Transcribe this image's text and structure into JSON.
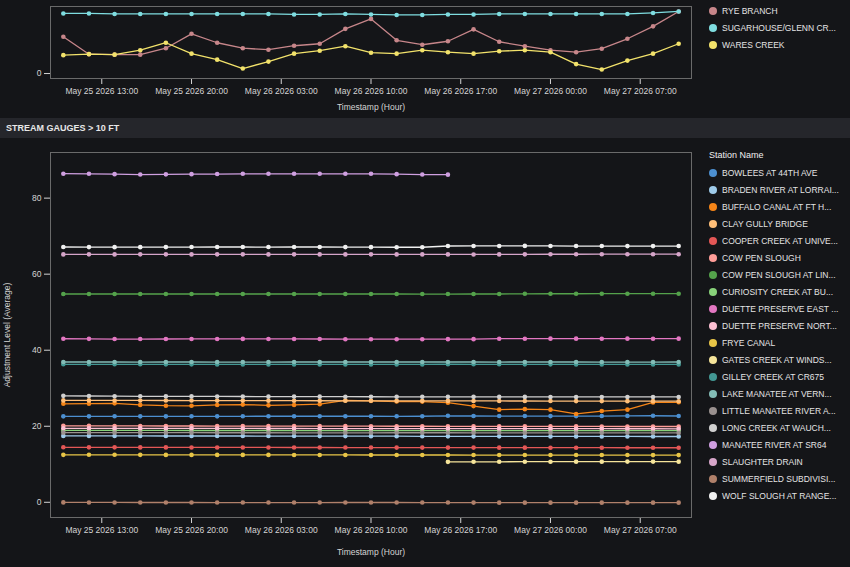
{
  "chart_data": [
    {
      "type": "line",
      "xlabel": "Timestamp (Hour)",
      "x": [
        "2026-05-25T10:00",
        "2026-05-25T12:00",
        "2026-05-25T14:00",
        "2026-05-25T16:00",
        "2026-05-25T18:00",
        "2026-05-25T20:00",
        "2026-05-25T22:00",
        "2026-05-26T00:00",
        "2026-05-26T02:00",
        "2026-05-26T04:00",
        "2026-05-26T06:00",
        "2026-05-26T08:00",
        "2026-05-26T10:00",
        "2026-05-26T12:00",
        "2026-05-26T14:00",
        "2026-05-26T16:00",
        "2026-05-26T18:00",
        "2026-05-26T20:00",
        "2026-05-26T22:00",
        "2026-05-27T00:00",
        "2026-05-27T02:00",
        "2026-05-27T04:00",
        "2026-05-27T06:00",
        "2026-05-27T08:00",
        "2026-05-27T10:00"
      ],
      "xlim": [
        "2026-05-25T09:00",
        "2026-05-27T11:00"
      ],
      "xticks": [
        {
          "value": "2026-05-25T13:00",
          "label": "May 25 2026 13:00"
        },
        {
          "value": "2026-05-25T20:00",
          "label": "May 25 2026 20:00"
        },
        {
          "value": "2026-05-26T03:00",
          "label": "May 26 2026 03:00"
        },
        {
          "value": "2026-05-26T10:00",
          "label": "May 26 2026 10:00"
        },
        {
          "value": "2026-05-26T17:00",
          "label": "May 26 2026 17:00"
        },
        {
          "value": "2026-05-27T00:00",
          "label": "May 27 2026 00:00"
        },
        {
          "value": "2026-05-27T07:00",
          "label": "May 27 2026 07:00"
        }
      ],
      "ylim": [
        -0.1,
        1.35
      ],
      "yticks": [
        0
      ],
      "grid": false,
      "legend": "right",
      "marker": "circle",
      "series": [
        {
          "name": "RYE BRANCH",
          "color": "#c7868a",
          "values": [
            0.74,
            0.39,
            0.38,
            0.38,
            0.51,
            0.8,
            0.62,
            0.51,
            0.48,
            0.56,
            0.6,
            0.9,
            1.1,
            0.67,
            0.58,
            0.65,
            0.89,
            0.64,
            0.55,
            0.47,
            0.43,
            0.5,
            0.7,
            0.95,
            1.25
          ]
        },
        {
          "name": "SUGARHOUSE/GLENN CR...",
          "color": "#7fdde0",
          "values": [
            1.21,
            1.21,
            1.2,
            1.2,
            1.2,
            1.2,
            1.2,
            1.2,
            1.2,
            1.19,
            1.19,
            1.2,
            1.19,
            1.18,
            1.18,
            1.19,
            1.19,
            1.2,
            1.2,
            1.2,
            1.2,
            1.2,
            1.2,
            1.22,
            1.25
          ]
        },
        {
          "name": "WARES CREEK",
          "color": "#f2e26b",
          "values": [
            0.37,
            0.39,
            0.38,
            0.47,
            0.62,
            0.4,
            0.28,
            0.1,
            0.24,
            0.4,
            0.46,
            0.55,
            0.42,
            0.4,
            0.47,
            0.43,
            0.4,
            0.45,
            0.47,
            0.43,
            0.19,
            0.08,
            0.26,
            0.4,
            0.6
          ]
        }
      ]
    },
    {
      "type": "line",
      "title": "STREAM GAUGES > 10 FT",
      "legend_title": "Station Name",
      "xlabel": "Timestamp (Hour)",
      "ylabel": "Adjustment Level (Average)",
      "x": [
        "2026-05-25T10:00",
        "2026-05-25T12:00",
        "2026-05-25T14:00",
        "2026-05-25T16:00",
        "2026-05-25T18:00",
        "2026-05-25T20:00",
        "2026-05-25T22:00",
        "2026-05-26T00:00",
        "2026-05-26T02:00",
        "2026-05-26T04:00",
        "2026-05-26T06:00",
        "2026-05-26T08:00",
        "2026-05-26T10:00",
        "2026-05-26T12:00",
        "2026-05-26T14:00",
        "2026-05-26T16:00",
        "2026-05-26T18:00",
        "2026-05-26T20:00",
        "2026-05-26T22:00",
        "2026-05-27T00:00",
        "2026-05-27T02:00",
        "2026-05-27T04:00",
        "2026-05-27T06:00",
        "2026-05-27T08:00",
        "2026-05-27T10:00"
      ],
      "xlim": [
        "2026-05-25T09:00",
        "2026-05-27T11:00"
      ],
      "xticks": [
        {
          "value": "2026-05-25T13:00",
          "label": "May 25 2026 13:00"
        },
        {
          "value": "2026-05-25T20:00",
          "label": "May 25 2026 20:00"
        },
        {
          "value": "2026-05-26T03:00",
          "label": "May 26 2026 03:00"
        },
        {
          "value": "2026-05-26T10:00",
          "label": "May 26 2026 10:00"
        },
        {
          "value": "2026-05-26T17:00",
          "label": "May 26 2026 17:00"
        },
        {
          "value": "2026-05-27T00:00",
          "label": "May 27 2026 00:00"
        },
        {
          "value": "2026-05-27T07:00",
          "label": "May 27 2026 07:00"
        }
      ],
      "ylim": [
        -4,
        92
      ],
      "yticks": [
        0,
        20,
        40,
        60,
        80
      ],
      "grid": false,
      "legend": "right",
      "marker": "circle",
      "series": [
        {
          "name": "BOWLEES AT 44TH AVE",
          "color": "#4c8fd0",
          "values": [
            22.61,
            22.61,
            22.62,
            22.61,
            22.61,
            22.62,
            22.61,
            22.62,
            22.63,
            22.63,
            22.63,
            22.63,
            22.63,
            22.62,
            22.63,
            22.75,
            22.7,
            22.68,
            22.68,
            22.67,
            22.67,
            22.68,
            22.72,
            22.76,
            22.7
          ]
        },
        {
          "name": "BRADEN RIVER AT LORRAI...",
          "color": "#9ecae9",
          "values": [
            17.46,
            17.46,
            17.45,
            17.45,
            17.44,
            17.44,
            17.43,
            17.43,
            17.42,
            17.42,
            17.41,
            17.41,
            17.4,
            17.38,
            17.36,
            17.35,
            17.34,
            17.34,
            17.33,
            17.33,
            17.33,
            17.32,
            17.32,
            17.31,
            17.31
          ]
        },
        {
          "name": "BUFFALO CANAL AT FT H...",
          "color": "#f58518",
          "values": [
            25.9,
            25.93,
            26.02,
            25.62,
            25.41,
            25.38,
            25.6,
            25.7,
            25.5,
            25.6,
            25.8,
            26.79,
            26.68,
            26.5,
            26.48,
            26.2,
            25.3,
            24.37,
            24.5,
            24.37,
            23.23,
            24.0,
            24.37,
            26.27,
            26.3
          ]
        },
        {
          "name": "CLAY GULLY BRIDGE",
          "color": "#ffbf79",
          "values": [
            26.8,
            26.8,
            26.79,
            26.78,
            26.77,
            26.76,
            26.75,
            26.74,
            26.73,
            26.72,
            26.71,
            26.7,
            26.69,
            26.68,
            26.68,
            26.67,
            26.66,
            26.65,
            26.64,
            26.63,
            26.62,
            26.61,
            26.6,
            26.6,
            26.59
          ]
        },
        {
          "name": "COOPER CREEK AT UNIVE...",
          "color": "#e45756",
          "values": [
            14.46,
            14.45,
            14.45,
            14.44,
            14.44,
            14.43,
            14.43,
            14.42,
            14.42,
            14.41,
            14.41,
            14.4,
            14.4,
            14.39,
            14.39,
            14.38,
            14.38,
            14.37,
            14.37,
            14.36,
            14.36,
            14.36,
            14.35,
            14.35,
            14.35
          ]
        },
        {
          "name": "COW PEN SLOUGH",
          "color": "#ff9d98",
          "values": [
            20.1,
            20.1,
            20.08,
            20.08,
            20.07,
            20.06,
            20.05,
            20.05,
            20.04,
            20.03,
            20.02,
            20.02,
            20.01,
            20.0,
            20.0,
            19.99,
            19.98,
            19.98,
            19.97,
            19.96,
            19.96,
            19.95,
            19.94,
            19.94,
            19.93
          ]
        },
        {
          "name": "COW PEN SLOUGH AT LIN...",
          "color": "#54a24b",
          "values": [
            54.79,
            54.79,
            54.78,
            54.78,
            54.79,
            54.79,
            54.79,
            54.79,
            54.79,
            54.79,
            54.79,
            54.79,
            54.79,
            54.79,
            54.77,
            54.77,
            54.78,
            54.78,
            54.84,
            54.85,
            54.85,
            54.86,
            54.86,
            54.86,
            54.86
          ]
        },
        {
          "name": "CURIOSITY CREEK AT BU...",
          "color": "#88d27a",
          "values": [
            18.9,
            18.9,
            18.89,
            18.89,
            18.89,
            18.88,
            18.88,
            18.88,
            18.88,
            18.87,
            18.87,
            18.87,
            18.87,
            18.87,
            18.87,
            18.87,
            18.87,
            18.86,
            18.86,
            18.86,
            18.86,
            18.86,
            18.86,
            18.86,
            18.87
          ]
        },
        {
          "name": "DUETTE PRESERVE EAST ...",
          "color": "#e377c2",
          "values": [
            43.01,
            42.99,
            42.94,
            42.94,
            42.95,
            42.96,
            42.96,
            42.98,
            42.96,
            42.96,
            42.95,
            42.9,
            42.9,
            42.9,
            42.89,
            42.91,
            42.91,
            43.03,
            43.03,
            43.04,
            43.04,
            43.03,
            43.04,
            43.03,
            43.04
          ]
        },
        {
          "name": "DUETTE PRESERVE NORT...",
          "color": "#fcbfd2",
          "values": [
            19.45,
            19.45,
            19.44,
            19.44,
            19.43,
            19.43,
            19.42,
            19.42,
            19.41,
            19.41,
            19.4,
            19.4,
            19.39,
            19.39,
            19.38,
            19.38,
            19.37,
            19.37,
            19.36,
            19.36,
            19.35,
            19.35,
            19.34,
            19.34,
            19.33
          ]
        },
        {
          "name": "FRYE CANAL",
          "color": "#e8c547",
          "values": [
            12.48,
            12.49,
            12.49,
            12.48,
            12.47,
            12.47,
            12.46,
            12.46,
            12.46,
            12.45,
            12.45,
            12.45,
            12.44,
            12.44,
            12.44,
            12.44,
            12.43,
            12.43,
            12.43,
            12.42,
            12.42,
            12.42,
            12.42,
            12.41,
            12.41
          ]
        },
        {
          "name": "GATES CREEK AT WINDS...",
          "color": "#f5e49a",
          "values": [
            null,
            null,
            null,
            null,
            null,
            null,
            null,
            null,
            null,
            null,
            null,
            null,
            null,
            null,
            null,
            10.64,
            10.65,
            10.65,
            10.68,
            10.68,
            10.69,
            10.69,
            10.7,
            10.7,
            10.69
          ]
        },
        {
          "name": "GILLEY CREEK AT CR675",
          "color": "#439894",
          "values": [
            36.3,
            36.3,
            36.29,
            36.29,
            36.28,
            36.28,
            36.27,
            36.27,
            36.26,
            36.26,
            36.26,
            36.25,
            36.25,
            36.26,
            36.26,
            36.31,
            36.3,
            36.29,
            36.28,
            36.28,
            36.27,
            36.27,
            36.27,
            36.27,
            36.27
          ]
        },
        {
          "name": "LAKE MANATEE AT VERN...",
          "color": "#83bcb6",
          "values": [
            36.9,
            36.9,
            36.9,
            36.89,
            36.9,
            36.9,
            36.89,
            36.89,
            36.89,
            36.9,
            36.9,
            36.9,
            36.9,
            36.9,
            36.9,
            36.9,
            36.9,
            36.89,
            36.9,
            36.9,
            36.9,
            36.89,
            36.89,
            36.89,
            36.9
          ]
        },
        {
          "name": "LITTLE MANATEE RIVER A...",
          "color": "#9a918f",
          "values": [
            18.32,
            18.31,
            18.31,
            18.3,
            18.3,
            18.3,
            18.29,
            18.29,
            18.29,
            18.28,
            18.28,
            18.28,
            18.28,
            18.29,
            18.29,
            18.29,
            18.28,
            18.28,
            18.27,
            18.27,
            18.27,
            18.26,
            18.26,
            18.26,
            18.25
          ]
        },
        {
          "name": "LONG CREEK AT WAUCH...",
          "color": "#d0d0d0",
          "values": [
            28,
            27.95,
            27.9,
            27.88,
            27.86,
            27.85,
            27.84,
            27.82,
            27.8,
            27.8,
            27.78,
            27.77,
            27.76,
            27.75,
            27.74,
            27.73,
            27.73,
            27.72,
            27.72,
            27.71,
            27.71,
            27.71,
            27.7,
            27.7,
            27.7
          ]
        },
        {
          "name": "MANATEE RIVER AT SR64",
          "color": "#cf9fe0",
          "values": [
            86.43,
            86.4,
            86.3,
            86.2,
            86.25,
            86.3,
            86.33,
            86.4,
            86.4,
            86.4,
            86.4,
            86.4,
            86.4,
            86.3,
            86.2,
            86.18,
            null,
            null,
            null,
            null,
            null,
            null,
            null,
            null,
            null
          ]
        },
        {
          "name": "SLAUGHTER DRAIN",
          "color": "#d6a5c9",
          "values": [
            65.2,
            65.21,
            65.2,
            65.21,
            65.21,
            65.2,
            65.21,
            65.21,
            65.2,
            65.21,
            65.2,
            65.2,
            65.21,
            65.2,
            65.2,
            65.2,
            65.19,
            65.2,
            65.21,
            65.24,
            65.24,
            65.25,
            65.25,
            65.25,
            65.25
          ]
        },
        {
          "name": "SUMMERFIELD SUBDIVISI...",
          "color": "#b0806a",
          "values": [
            -0.03,
            -0.04,
            -0.04,
            -0.05,
            -0.05,
            -0.06,
            -0.07,
            -0.07,
            -0.07,
            -0.07,
            -0.07,
            -0.06,
            -0.06,
            -0.06,
            -0.07,
            -0.07,
            -0.08,
            -0.09,
            -0.1,
            -0.1,
            -0.1,
            -0.1,
            -0.09,
            -0.09,
            -0.09
          ]
        },
        {
          "name": "WOLF SLOUGH AT RANGE...",
          "color": "#f0f0f0",
          "values": [
            67.15,
            67.12,
            67.11,
            67.1,
            67.12,
            67.13,
            67.14,
            67.14,
            67.13,
            67.14,
            67.14,
            67.12,
            67.1,
            67.08,
            67.08,
            67.41,
            67.42,
            67.42,
            67.43,
            67.42,
            67.4,
            67.39,
            67.38,
            67.38,
            67.39
          ]
        }
      ]
    }
  ]
}
